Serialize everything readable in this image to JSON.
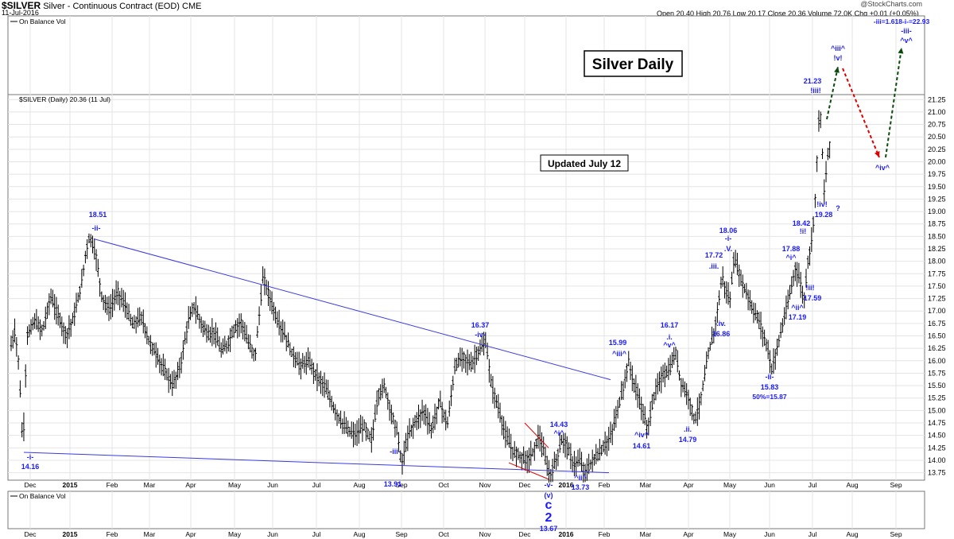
{
  "header": {
    "symbol": "$SILVER",
    "description": "Silver - Continuous Contract (EOD)  CME",
    "date": "11-Jul-2016",
    "quote": "Open 20.40  High 20.76  Low 20.17  Close 20.36  Volume 72.0K  Chg +0.01 (+0.05%)",
    "brand": "@StockCharts.com"
  },
  "panels": {
    "obv_top_label": "On Balance Vol",
    "price_label": "$SILVER (Daily) 20.36 (11 Jul)",
    "obv_bottom_label": "On Balance Vol"
  },
  "boxes": {
    "title": "Silver Daily",
    "updated": "Updated July 12"
  },
  "colors": {
    "wave_label": "#1a1aff",
    "trendline": "#3a3ae0",
    "bars": "#000000",
    "up_arrow": "#0a4a0a",
    "down_arrow": "#e00000"
  },
  "chart_data": {
    "type": "ohlc-bar",
    "y_axis": {
      "range": [
        13.6,
        21.35
      ],
      "ticks": [
        13.75,
        14.0,
        14.25,
        14.5,
        14.75,
        15.0,
        15.25,
        15.5,
        15.75,
        16.0,
        16.25,
        16.5,
        16.75,
        17.0,
        17.25,
        17.5,
        17.75,
        18.0,
        18.25,
        18.5,
        18.75,
        19.0,
        19.25,
        19.5,
        19.75,
        20.0,
        20.25,
        20.5,
        20.75,
        21.0,
        21.25
      ]
    },
    "x_axis": {
      "labels": [
        "Dec",
        "2015",
        "Feb",
        "Mar",
        "Apr",
        "May",
        "Jun",
        "Jul",
        "Aug",
        "Sep",
        "Oct",
        "Nov",
        "Dec",
        "2016",
        "Feb",
        "Mar",
        "Apr",
        "May",
        "Jun",
        "Jul",
        "Aug",
        "Sep"
      ]
    },
    "close_path": [
      [
        0,
        16.3
      ],
      [
        5,
        16.6
      ],
      [
        10,
        15.9
      ],
      [
        15,
        14.16
      ],
      [
        20,
        16.5
      ],
      [
        30,
        16.8
      ],
      [
        40,
        16.6
      ],
      [
        50,
        17.3
      ],
      [
        60,
        16.9
      ],
      [
        70,
        16.5
      ],
      [
        80,
        16.9
      ],
      [
        90,
        17.6
      ],
      [
        95,
        18.2
      ],
      [
        100,
        18.51
      ],
      [
        108,
        18.1
      ],
      [
        115,
        17.3
      ],
      [
        125,
        17.0
      ],
      [
        135,
        17.4
      ],
      [
        145,
        17.1
      ],
      [
        155,
        16.7
      ],
      [
        165,
        16.9
      ],
      [
        175,
        16.4
      ],
      [
        185,
        16.1
      ],
      [
        195,
        15.8
      ],
      [
        205,
        15.5
      ],
      [
        215,
        15.9
      ],
      [
        225,
        16.8
      ],
      [
        232,
        17.1
      ],
      [
        240,
        16.8
      ],
      [
        250,
        16.5
      ],
      [
        258,
        16.6
      ],
      [
        266,
        16.2
      ],
      [
        274,
        16.3
      ],
      [
        282,
        16.6
      ],
      [
        292,
        16.8
      ],
      [
        300,
        16.4
      ],
      [
        310,
        16.1
      ],
      [
        320,
        17.7
      ],
      [
        328,
        17.3
      ],
      [
        338,
        16.8
      ],
      [
        348,
        16.5
      ],
      [
        358,
        16.1
      ],
      [
        368,
        15.9
      ],
      [
        378,
        16.0
      ],
      [
        388,
        15.7
      ],
      [
        398,
        15.5
      ],
      [
        408,
        15.1
      ],
      [
        418,
        14.8
      ],
      [
        428,
        14.6
      ],
      [
        438,
        14.5
      ],
      [
        448,
        14.7
      ],
      [
        458,
        14.4
      ],
      [
        466,
        15.3
      ],
      [
        474,
        15.5
      ],
      [
        482,
        15.0
      ],
      [
        490,
        14.6
      ],
      [
        496,
        13.91
      ],
      [
        504,
        14.5
      ],
      [
        514,
        14.8
      ],
      [
        524,
        15.0
      ],
      [
        534,
        14.6
      ],
      [
        544,
        15.2
      ],
      [
        554,
        14.7
      ],
      [
        564,
        15.9
      ],
      [
        574,
        16.1
      ],
      [
        584,
        15.9
      ],
      [
        594,
        16.2
      ],
      [
        603,
        16.37
      ],
      [
        610,
        15.5
      ],
      [
        618,
        15.1
      ],
      [
        626,
        14.6
      ],
      [
        636,
        14.2
      ],
      [
        646,
        14.1
      ],
      [
        656,
        14.0
      ],
      [
        664,
        14.2
      ],
      [
        670,
        14.5
      ],
      [
        676,
        14.2
      ],
      [
        684,
        13.67
      ],
      [
        692,
        14.0
      ],
      [
        700,
        14.43
      ],
      [
        706,
        14.3
      ],
      [
        714,
        13.9
      ],
      [
        722,
        14.0
      ],
      [
        730,
        13.73
      ],
      [
        738,
        14.0
      ],
      [
        746,
        14.1
      ],
      [
        754,
        14.3
      ],
      [
        762,
        14.5
      ],
      [
        770,
        15.0
      ],
      [
        778,
        15.5
      ],
      [
        784,
        15.99
      ],
      [
        790,
        15.6
      ],
      [
        796,
        15.3
      ],
      [
        802,
        15.0
      ],
      [
        808,
        14.61
      ],
      [
        814,
        15.1
      ],
      [
        820,
        15.5
      ],
      [
        828,
        15.7
      ],
      [
        836,
        15.8
      ],
      [
        844,
        16.17
      ],
      [
        850,
        15.6
      ],
      [
        856,
        15.4
      ],
      [
        862,
        15.2
      ],
      [
        868,
        14.79
      ],
      [
        874,
        15.1
      ],
      [
        880,
        15.6
      ],
      [
        886,
        16.2
      ],
      [
        892,
        16.5
      ],
      [
        898,
        17.1
      ],
      [
        903,
        17.72
      ],
      [
        908,
        17.4
      ],
      [
        913,
        17.2
      ],
      [
        918,
        18.06
      ],
      [
        924,
        17.8
      ],
      [
        930,
        17.5
      ],
      [
        936,
        17.3
      ],
      [
        942,
        17.0
      ],
      [
        948,
        16.9
      ],
      [
        954,
        16.6
      ],
      [
        960,
        16.3
      ],
      [
        966,
        15.83
      ],
      [
        972,
        16.2
      ],
      [
        978,
        16.6
      ],
      [
        984,
        17.0
      ],
      [
        990,
        17.4
      ],
      [
        996,
        17.88
      ],
      [
        1002,
        17.6
      ],
      [
        1007,
        17.19
      ],
      [
        1012,
        18.0
      ],
      [
        1017,
        18.42
      ],
      [
        1021,
        19.2
      ],
      [
        1024,
        20.2
      ],
      [
        1027,
        21.23
      ],
      [
        1030,
        20.3
      ],
      [
        1033,
        19.28
      ],
      [
        1036,
        20.0
      ],
      [
        1040,
        20.36
      ]
    ],
    "annotations": [
      {
        "text": "18.51",
        "color": "blue"
      },
      {
        "text": "-ii-",
        "color": "blue"
      },
      {
        "text": "-i-",
        "color": "blue"
      },
      {
        "text": "14.16",
        "color": "blue"
      },
      {
        "text": "-iii-",
        "color": "blue"
      },
      {
        "text": "13.91",
        "color": "blue"
      },
      {
        "text": "16.37",
        "color": "blue"
      },
      {
        "text": "-iv-",
        "color": "blue"
      },
      {
        "text": "14.43",
        "color": "blue"
      },
      {
        "text": "^i^",
        "color": "blue"
      },
      {
        "text": "-v-",
        "color": "blue"
      },
      {
        "text": "13.67",
        "color": "blue"
      },
      {
        "text": "(v)",
        "color": "blue"
      },
      {
        "text": "c",
        "color": "blue"
      },
      {
        "text": "2",
        "color": "blue"
      },
      {
        "text": "^ii^",
        "color": "blue"
      },
      {
        "text": "13.73",
        "color": "blue"
      },
      {
        "text": "15.99",
        "color": "blue"
      },
      {
        "text": "^iii^",
        "color": "blue"
      },
      {
        "text": "^iv^",
        "color": "blue"
      },
      {
        "text": "14.61",
        "color": "blue"
      },
      {
        "text": "16.17",
        "color": "blue"
      },
      {
        "text": ".i.",
        "color": "blue"
      },
      {
        "text": "^v^",
        "color": "blue"
      },
      {
        "text": ".ii.",
        "color": "blue"
      },
      {
        "text": "14.79",
        "color": "blue"
      },
      {
        "text": "17.72",
        "color": "blue"
      },
      {
        "text": ".iii.",
        "color": "blue"
      },
      {
        "text": ".iv.",
        "color": "blue"
      },
      {
        "text": "16.86",
        "color": "blue"
      },
      {
        "text": "18.06",
        "color": "blue"
      },
      {
        "text": "-i-",
        "color": "blue"
      },
      {
        "text": ".V.",
        "color": "blue"
      },
      {
        "text": "-ii-",
        "color": "blue"
      },
      {
        "text": "15.83",
        "color": "blue"
      },
      {
        "text": "50%=15.87",
        "color": "blue"
      },
      {
        "text": "17.88",
        "color": "blue"
      },
      {
        "text": "^i^",
        "color": "blue"
      },
      {
        "text": "^ii^",
        "color": "blue"
      },
      {
        "text": "17.19",
        "color": "blue"
      },
      {
        "text": "18.42",
        "color": "blue"
      },
      {
        "text": "!i!",
        "color": "blue"
      },
      {
        "text": "!ii!",
        "color": "blue"
      },
      {
        "text": "17.59",
        "color": "blue"
      },
      {
        "text": "21.23",
        "color": "blue"
      },
      {
        "text": "!iii!",
        "color": "blue"
      },
      {
        "text": "!iv!",
        "color": "blue"
      },
      {
        "text": "19.28",
        "color": "blue"
      },
      {
        "text": "?",
        "color": "blue"
      },
      {
        "text": "^iii^",
        "color": "blue"
      },
      {
        "text": "!v!",
        "color": "blue"
      },
      {
        "text": "^iv^",
        "color": "blue"
      },
      {
        "text": "-iii=1.618-i-=22.93",
        "color": "blue"
      },
      {
        "text": "-iii-",
        "color": "blue"
      },
      {
        "text": "^v^",
        "color": "blue"
      }
    ]
  }
}
